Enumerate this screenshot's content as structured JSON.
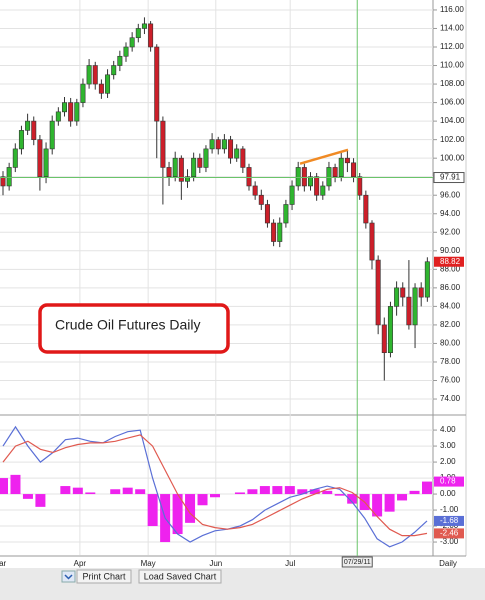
{
  "chart_data": [
    {
      "type": "candlestick",
      "annotation": "Crude Oil Futures Daily",
      "open": [
        98,
        97,
        99,
        101,
        103,
        104,
        102,
        98,
        101,
        104,
        105,
        106,
        104,
        106,
        108,
        110,
        108,
        107,
        109,
        110,
        111,
        112,
        113,
        114,
        114.5,
        112,
        104,
        99,
        98,
        100,
        97.5,
        98,
        100,
        99,
        101,
        102,
        101,
        102,
        100,
        101,
        99,
        97,
        96,
        95,
        93,
        91,
        93,
        95,
        97,
        99,
        97,
        98,
        96,
        97,
        99,
        98,
        100,
        99.5,
        98,
        96,
        93,
        89,
        82,
        79,
        84,
        86,
        85,
        82,
        86,
        85
      ],
      "high": [
        98.6,
        99.5,
        101.6,
        103.5,
        104.8,
        104.5,
        102.5,
        101.7,
        104.6,
        105.5,
        106.6,
        106.5,
        106.4,
        108.6,
        110.7,
        110.4,
        108.5,
        109.6,
        110.5,
        111.6,
        112.5,
        113.6,
        114.5,
        115.2,
        114.8,
        112.3,
        104.5,
        99.6,
        100.7,
        100.3,
        98.8,
        100.6,
        100.5,
        101.4,
        102.7,
        102.3,
        102.6,
        102.4,
        101.5,
        101.3,
        99.4,
        97.5,
        96.6,
        95.5,
        93.4,
        93.6,
        95.5,
        97.6,
        99.6,
        99.4,
        98.5,
        98.4,
        97.5,
        99.6,
        99.4,
        100.6,
        100.8,
        100,
        98.4,
        96.5,
        93.3,
        89.5,
        82.8,
        84.5,
        86.7,
        86.6,
        89,
        86.5,
        86.6,
        89.3
      ],
      "low": [
        96,
        96.5,
        98.5,
        100.4,
        102.5,
        101.4,
        96.5,
        97.3,
        100.4,
        103.5,
        104.5,
        103.4,
        103.5,
        105.5,
        107.5,
        107.4,
        106.4,
        106.5,
        108.5,
        109.4,
        110.4,
        111.5,
        112.5,
        113.4,
        111.5,
        100,
        95,
        97,
        97.5,
        95.5,
        96.8,
        97.5,
        98.4,
        98.5,
        100.5,
        100.4,
        100.5,
        99.4,
        99.6,
        98.4,
        96.5,
        95.5,
        94.4,
        92.5,
        90.5,
        90.4,
        92.5,
        94.4,
        96.5,
        96.4,
        96.5,
        95.4,
        95.5,
        96.5,
        97.4,
        97.5,
        98.5,
        97.4,
        95.5,
        92.4,
        88,
        81,
        76,
        78.5,
        83,
        84,
        81.5,
        79.5,
        84,
        84.5
      ],
      "close": [
        97,
        99,
        101,
        103,
        104,
        102,
        98,
        101,
        104,
        105,
        106,
        104,
        106,
        108,
        110,
        108,
        107,
        109,
        110,
        111,
        112,
        113,
        114,
        114.5,
        112,
        104,
        99,
        98,
        100,
        97.5,
        98,
        100,
        99,
        101,
        102,
        101,
        102,
        100,
        101,
        99,
        97,
        96,
        95,
        93,
        91,
        93,
        95,
        97,
        99,
        97,
        98,
        96,
        97,
        99,
        98,
        100,
        99.5,
        98,
        96,
        93,
        89,
        82,
        79,
        84,
        86,
        85,
        82,
        86,
        85,
        88.82
      ],
      "up_color": "#2fb52f",
      "down_color": "#cc1f2a",
      "ylim": [
        72.6,
        116.75
      ],
      "yticks": [
        {
          "value": 116,
          "label": "116.00"
        },
        {
          "value": 114,
          "label": "114.00"
        },
        {
          "value": 112,
          "label": "112.00"
        },
        {
          "value": 110,
          "label": "110.00"
        },
        {
          "value": 108,
          "label": "108.00"
        },
        {
          "value": 106,
          "label": "106.00"
        },
        {
          "value": 104,
          "label": "104.00"
        },
        {
          "value": 102,
          "label": "102.00"
        },
        {
          "value": 100,
          "label": "100.00"
        },
        {
          "value": 98,
          "label": "98.00"
        },
        {
          "value": 96,
          "label": "96.00"
        },
        {
          "value": 94,
          "label": "94.00"
        },
        {
          "value": 92,
          "label": "92.00"
        },
        {
          "value": 90,
          "label": "90.00"
        },
        {
          "value": 88,
          "label": "88.00"
        },
        {
          "value": 86,
          "label": "86.00"
        },
        {
          "value": 84,
          "label": "84.00"
        },
        {
          "value": 82,
          "label": "82.00"
        },
        {
          "value": 80,
          "label": "80.00"
        },
        {
          "value": 78,
          "label": "78.00"
        },
        {
          "value": 76,
          "label": "76.00"
        },
        {
          "value": 74,
          "label": "74.00"
        }
      ],
      "xticks": [
        {
          "value": -0.6,
          "label": "Mar"
        },
        {
          "value": 12.5,
          "label": "Apr"
        },
        {
          "value": 23.6,
          "label": "May"
        },
        {
          "value": 34.6,
          "label": "Jun"
        },
        {
          "value": 46.7,
          "label": "Jul"
        }
      ],
      "crosshair": {
        "x": {
          "value": 57.6,
          "label": "07/29/11"
        },
        "y": 97.91,
        "color": "#6ac46a"
      },
      "trendline": {
        "x": [
          48.3,
          56.1
        ],
        "y": [
          99.4,
          100.9
        ],
        "color": "#f08a24"
      },
      "grid": true
    },
    {
      "type": "macd",
      "series": [
        {
          "color": "#5a6fd6",
          "values": [
            3.0,
            4.2,
            3.0,
            2.0,
            2.6,
            3.4,
            3.5,
            3.3,
            3.2,
            3.6,
            3.9,
            4.0,
            1.0,
            -1.5,
            -2.5,
            -3.0,
            -2.6,
            -2.3,
            -2.2,
            -2.0,
            -1.6,
            -1.0,
            -0.6,
            -0.2,
            0.0,
            0.3,
            0.5,
            0.3,
            -0.5,
            -1.5,
            -2.8,
            -3.3,
            -3.0,
            -2.4,
            -1.68
          ]
        },
        {
          "color": "#e05a50",
          "values": [
            2.0,
            3.0,
            3.3,
            2.8,
            2.6,
            2.9,
            3.1,
            3.2,
            3.2,
            3.3,
            3.5,
            3.7,
            3.0,
            1.5,
            0.0,
            -1.2,
            -1.9,
            -2.1,
            -2.2,
            -2.1,
            -1.9,
            -1.5,
            -1.1,
            -0.7,
            -0.3,
            0.0,
            0.3,
            0.4,
            0.1,
            -0.5,
            -1.4,
            -2.2,
            -2.6,
            -2.6,
            -2.46
          ]
        },
        {
          "color": "#ee22ee",
          "style": "bar",
          "values": [
            1.0,
            1.2,
            -0.3,
            -0.8,
            0.0,
            0.5,
            0.4,
            0.1,
            0.0,
            0.3,
            0.4,
            0.3,
            -2.0,
            -3.0,
            -2.5,
            -1.8,
            -0.7,
            -0.2,
            0.0,
            0.1,
            0.3,
            0.5,
            0.5,
            0.5,
            0.3,
            0.3,
            0.2,
            -0.1,
            -0.6,
            -1.0,
            -1.4,
            -1.1,
            -0.4,
            0.2,
            0.78
          ]
        }
      ],
      "ylim": [
        -3.81,
        4.63
      ],
      "yticks": [
        {
          "value": 4,
          "label": "4.00"
        },
        {
          "value": 3,
          "label": "3.00"
        },
        {
          "value": 2,
          "label": "2.00"
        },
        {
          "value": 1,
          "label": "1.00"
        },
        {
          "value": 0,
          "label": "0.00"
        },
        {
          "value": -1,
          "label": "-1.00"
        },
        {
          "value": -2,
          "label": "-2.00"
        },
        {
          "value": -3,
          "label": "-3.00"
        }
      ],
      "grid": true
    }
  ],
  "toolbar": {
    "interval": "Daily",
    "buttons": [
      "Print Chart",
      "Load Saved Chart"
    ]
  }
}
